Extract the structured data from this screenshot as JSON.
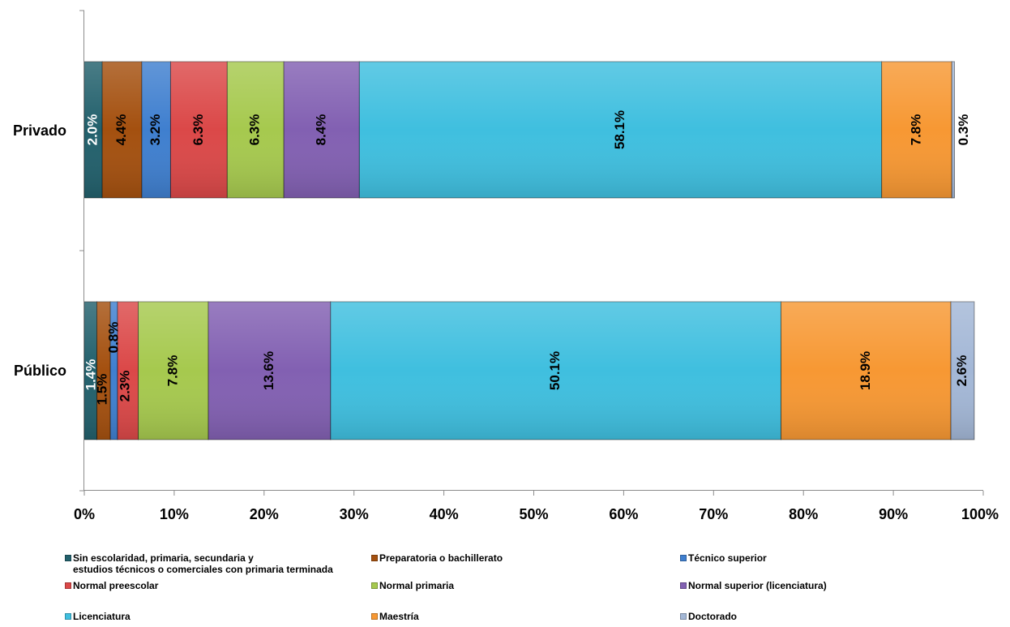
{
  "chart_data": {
    "type": "bar",
    "orientation": "horizontal",
    "stacked": true,
    "percent": true,
    "categories": [
      "Privado",
      "Público"
    ],
    "xlim": [
      0,
      100
    ],
    "x_ticks": [
      "0%",
      "10%",
      "20%",
      "30%",
      "40%",
      "50%",
      "60%",
      "70%",
      "80%",
      "90%",
      "100%"
    ],
    "grid": false,
    "legend_position": "bottom",
    "series": [
      {
        "name": "Sin escolaridad, primaria, secundaria y\nestudios técnicos o comerciales con primaria terminada",
        "color": "#22606c",
        "label_color": "#ffffff",
        "values": [
          2.0,
          1.4
        ],
        "labels": [
          "2.0%",
          "1.4%"
        ]
      },
      {
        "name": "Preparatoria o bachillerato",
        "color": "#a4500f",
        "label_color": "#000000",
        "values": [
          4.4,
          1.5
        ],
        "labels": [
          "4.4%",
          "1.5%"
        ]
      },
      {
        "name": "Técnico superior",
        "color": "#3f7fcf",
        "label_color": "#000000",
        "values": [
          3.2,
          0.8
        ],
        "labels": [
          "3.2%",
          "0.8%"
        ]
      },
      {
        "name": "Normal preescolar",
        "color": "#db4848",
        "label_color": "#000000",
        "values": [
          6.3,
          2.3
        ],
        "labels": [
          "6.3%",
          "2.3%"
        ]
      },
      {
        "name": "Normal primaria",
        "color": "#a6c94e",
        "label_color": "#000000",
        "values": [
          6.3,
          7.8
        ],
        "labels": [
          "6.3%",
          "7.8%"
        ]
      },
      {
        "name": "Normal superior (licenciatura)",
        "color": "#8260b2",
        "label_color": "#000000",
        "values": [
          8.4,
          13.6
        ],
        "labels": [
          "8.4%",
          "13.6%"
        ]
      },
      {
        "name": "Licenciatura",
        "color": "#3fbfdf",
        "label_color": "#000000",
        "values": [
          58.1,
          50.1
        ],
        "labels": [
          "58.1%",
          "50.1%"
        ]
      },
      {
        "name": "Maestría",
        "color": "#f79833",
        "label_color": "#000000",
        "values": [
          7.8,
          18.9
        ],
        "labels": [
          "7.8%",
          "18.9%"
        ]
      },
      {
        "name": "Doctorado",
        "color": "#a3b7d6",
        "label_color": "#000000",
        "values": [
          0.3,
          2.6
        ],
        "labels": [
          "0.3%",
          "2.6%"
        ]
      }
    ]
  }
}
